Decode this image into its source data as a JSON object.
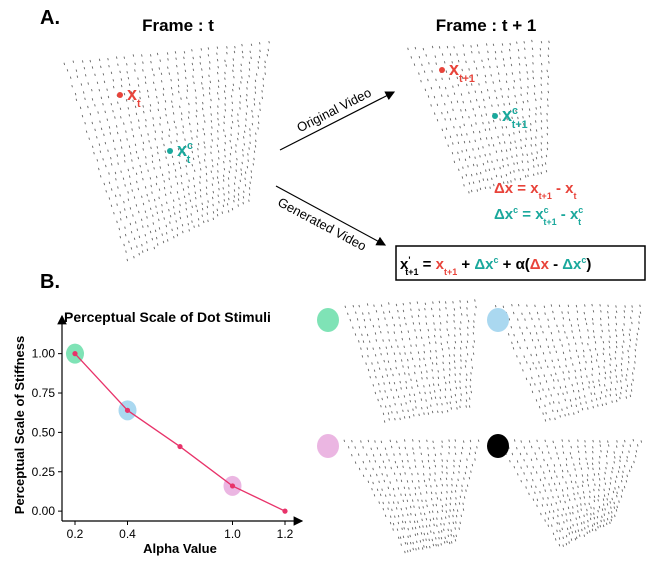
{
  "panel_a": {
    "label": "A.",
    "frame_left": "Frame : t",
    "frame_right": "Frame : t + 1",
    "arrow_top": "Original Video",
    "arrow_bottom": "Generated Video",
    "red": "#e8433a",
    "teal": "#1aa89c",
    "points": [
      {
        "tokens": [
          {
            "text": "x",
            "sub": "t",
            "color": "#e8433a"
          }
        ]
      },
      {
        "tokens": [
          {
            "text": "x",
            "sup": "c",
            "sub": "t",
            "color": "#1aa89c"
          }
        ]
      },
      {
        "tokens": [
          {
            "text": "x",
            "sub": "t+1",
            "color": "#e8433a"
          }
        ]
      },
      {
        "tokens": [
          {
            "text": "x",
            "sup": "c",
            "sub": "t+1",
            "color": "#1aa89c"
          }
        ]
      }
    ],
    "equations": [
      {
        "tokens": [
          {
            "text": "Δx  = x",
            "sub": "t+1",
            "color": "#e8433a"
          },
          {
            "text": "  -  x",
            "sub": "t",
            "color": "#e8433a"
          }
        ]
      },
      {
        "tokens": [
          {
            "text": "Δx",
            "sup": "c",
            "color": "#1aa89c"
          },
          {
            "text": " = x",
            "sup": "c",
            "sub": "t+1",
            "color": "#1aa89c"
          },
          {
            "text": " -  x",
            "sup": "c",
            "sub": "t",
            "color": "#1aa89c"
          }
        ]
      },
      {
        "tokens": [
          {
            "text": "x",
            "sup": "'",
            "sub": "t+1",
            "color": "#000000"
          },
          {
            "text": " = ",
            "color": "#000000"
          },
          {
            "text": "x",
            "sub": "t+1",
            "color": "#e8433a"
          },
          {
            "text": " + ",
            "color": "#000000"
          },
          {
            "text": "Δx",
            "sup": "c",
            "color": "#1aa89c"
          },
          {
            "text": "  + α(",
            "color": "#000000"
          },
          {
            "text": "Δx",
            "color": "#e8433a"
          },
          {
            "text": " - ",
            "color": "#000000"
          },
          {
            "text": "Δx",
            "sup": "c",
            "color": "#1aa89c"
          },
          {
            "text": ")",
            "color": "#000000"
          }
        ]
      }
    ]
  },
  "panel_b": {
    "label": "B."
  },
  "chart_data": {
    "type": "line",
    "title": "Perceptual Scale of Dot Stimuli",
    "x_label": "Alpha Value",
    "y_label": "Perceptual Scale of Stiffness",
    "categories": [
      "0.2",
      "0.4",
      null,
      "1.0",
      "1.2"
    ],
    "values": [
      1.0,
      0.64,
      0.41,
      0.16,
      0.0
    ],
    "color": "#e8336a",
    "highlights": [
      "#7fe3b6",
      "#aad8f0",
      "#f5c98b",
      "#ebb6e2"
    ],
    "ylim": [
      -0.05,
      1.22
    ],
    "yticks": [
      {
        "value": 0,
        "label": "0.00"
      },
      {
        "value": 0.25,
        "label": "0.25"
      },
      {
        "value": 0.5,
        "label": "0.50"
      },
      {
        "value": 0.75,
        "label": "0.75"
      },
      {
        "value": 1.0,
        "label": "1.00"
      }
    ]
  }
}
